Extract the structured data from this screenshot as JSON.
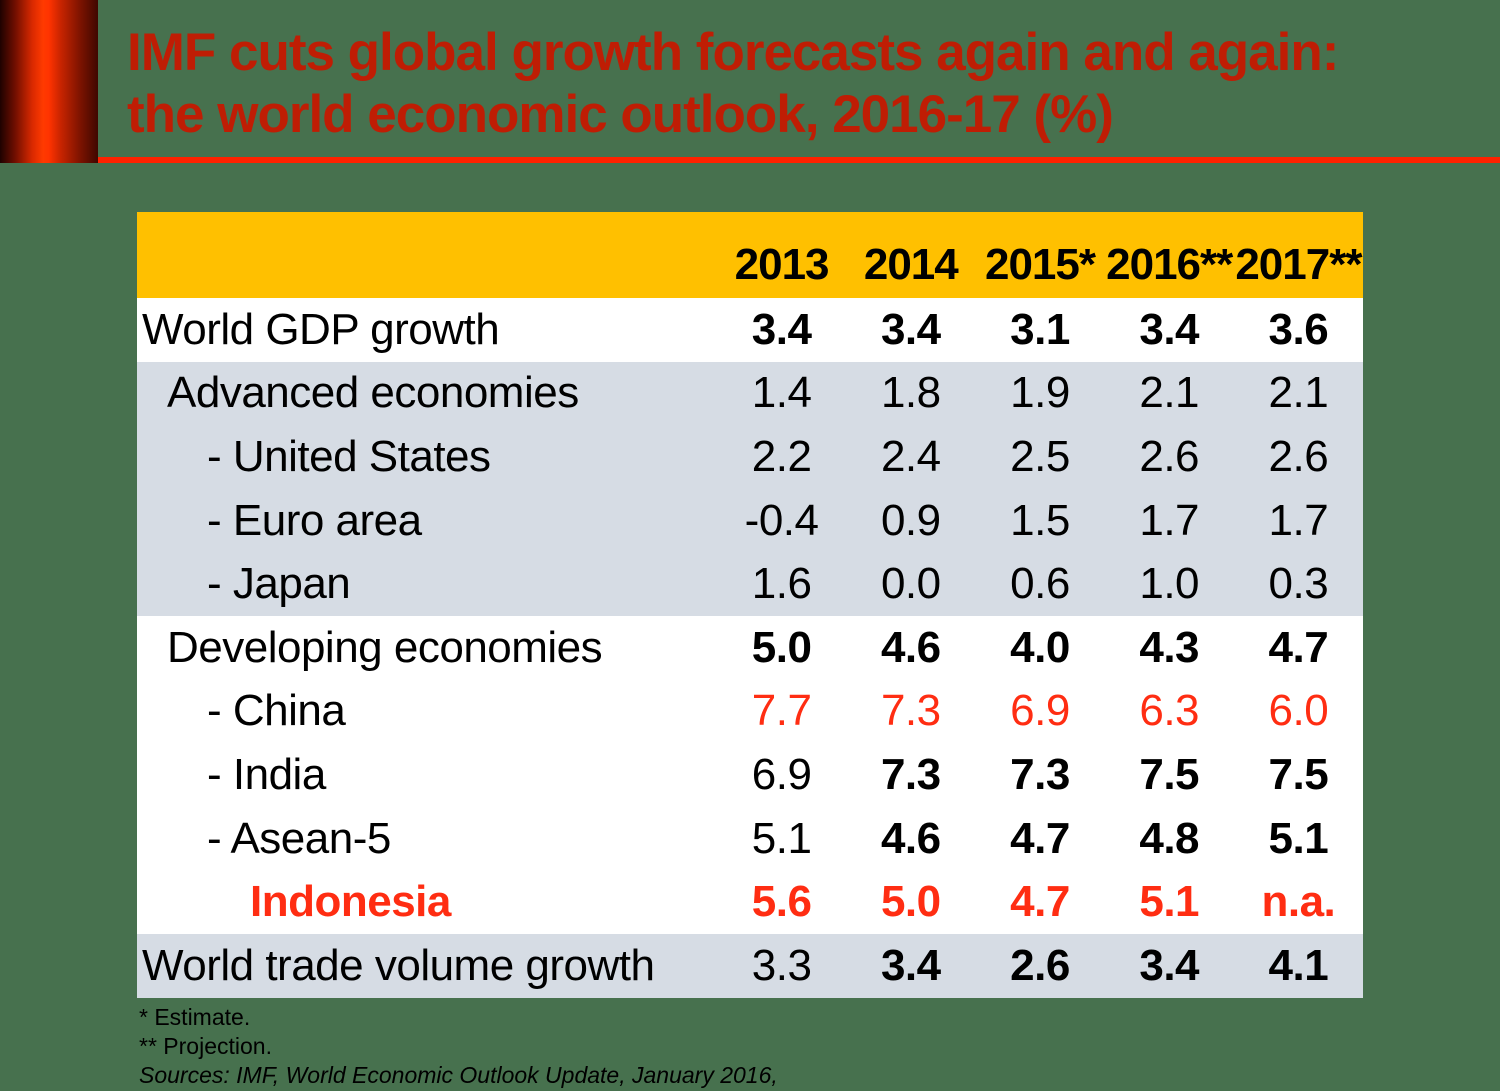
{
  "slide": {
    "title_line1": "IMF cuts global growth forecasts again and again:",
    "title_line2": "the world economic outlook, 2016-17 (%)",
    "colors": {
      "background_green": "#47714E",
      "header_yellow": "#FFC000",
      "band_gray": "#D6DCE4",
      "title_red": "#BF1D04",
      "rule_red": "#FF2200",
      "highlight_red": "#FF2D12"
    }
  },
  "table": {
    "header_years": [
      "2013",
      "2014",
      "2015*",
      "2016**",
      "2017**"
    ],
    "rows": [
      {
        "label": "World GDP growth",
        "indent": 0,
        "band": "white",
        "label_style": "normal",
        "values": [
          "3.4",
          "3.4",
          "3.1",
          "3.4",
          "3.6"
        ],
        "styles": [
          "b",
          "b",
          "b",
          "b",
          "b"
        ]
      },
      {
        "label": "Advanced economies",
        "indent": 1,
        "band": "gray",
        "label_style": "normal",
        "values": [
          "1.4",
          "1.8",
          "1.9",
          "2.1",
          "2.1"
        ],
        "styles": [
          "n",
          "n",
          "n",
          "n",
          "n"
        ]
      },
      {
        "label": "- United States",
        "indent": 2,
        "band": "gray",
        "label_style": "normal",
        "values": [
          "2.2",
          "2.4",
          "2.5",
          "2.6",
          "2.6"
        ],
        "styles": [
          "n",
          "n",
          "n",
          "n",
          "n"
        ]
      },
      {
        "label": "- Euro area",
        "indent": 2,
        "band": "gray",
        "label_style": "normal",
        "values": [
          "-0.4",
          "0.9",
          "1.5",
          "1.7",
          "1.7"
        ],
        "styles": [
          "n",
          "n",
          "n",
          "n",
          "n"
        ]
      },
      {
        "label": "- Japan",
        "indent": 2,
        "band": "gray",
        "label_style": "normal",
        "values": [
          "1.6",
          "0.0",
          "0.6",
          "1.0",
          "0.3"
        ],
        "styles": [
          "n",
          "n",
          "n",
          "n",
          "n"
        ]
      },
      {
        "label": "Developing economies",
        "indent": 1,
        "band": "white",
        "label_style": "normal",
        "values": [
          "5.0",
          "4.6",
          "4.0",
          "4.3",
          "4.7"
        ],
        "styles": [
          "b",
          "b",
          "b",
          "b",
          "b"
        ]
      },
      {
        "label": "- China",
        "indent": 2,
        "band": "white",
        "label_style": "normal",
        "values": [
          "7.7",
          "7.3",
          "6.9",
          "6.3",
          "6.0"
        ],
        "styles": [
          "r",
          "r",
          "r",
          "r",
          "r"
        ]
      },
      {
        "label": "- India",
        "indent": 2,
        "band": "white",
        "label_style": "normal",
        "values": [
          "6.9",
          "7.3",
          "7.3",
          "7.5",
          "7.5"
        ],
        "styles": [
          "n",
          "b",
          "b",
          "b",
          "b"
        ]
      },
      {
        "label": "- Asean-5",
        "indent": 2,
        "band": "white",
        "label_style": "normal",
        "values": [
          "5.1",
          "4.6",
          "4.7",
          "4.8",
          "5.1"
        ],
        "styles": [
          "n",
          "b",
          "b",
          "b",
          "b"
        ]
      },
      {
        "label": "Indonesia",
        "indent": 3,
        "band": "white",
        "label_style": "red_bold",
        "values": [
          "5.6",
          "5.0",
          "4.7",
          "5.1",
          "n.a."
        ],
        "styles": [
          "rb",
          "rb",
          "rb",
          "rb",
          "rb"
        ]
      },
      {
        "label": "World trade volume growth",
        "indent": 0,
        "band": "gray",
        "label_style": "normal",
        "values": [
          "3.3",
          "3.4",
          "2.6",
          "3.4",
          "4.1"
        ],
        "styles": [
          "n",
          "b",
          "b",
          "b",
          "b"
        ]
      }
    ]
  },
  "footnotes": {
    "estimate": "* Estimate.",
    "projection": "** Projection.",
    "sources": "Sources: IMF, World Economic Outlook Update, January 2016,"
  }
}
